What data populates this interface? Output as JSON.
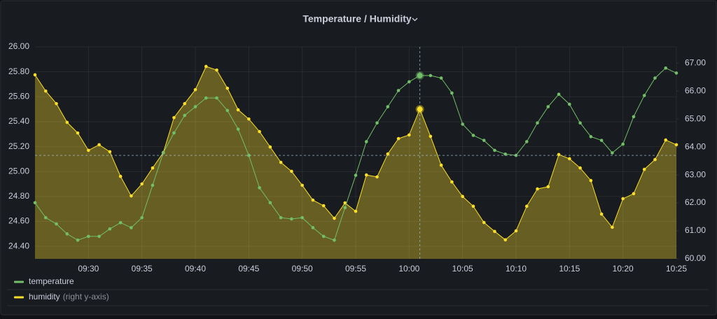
{
  "chart_data": {
    "type": "line",
    "title": "Temperature / Humidity",
    "x": [
      "09:25",
      "09:26",
      "09:27",
      "09:28",
      "09:29",
      "09:30",
      "09:31",
      "09:32",
      "09:33",
      "09:34",
      "09:35",
      "09:36",
      "09:37",
      "09:38",
      "09:39",
      "09:40",
      "09:41",
      "09:42",
      "09:43",
      "09:44",
      "09:45",
      "09:46",
      "09:47",
      "09:48",
      "09:49",
      "09:50",
      "09:51",
      "09:52",
      "09:53",
      "09:54",
      "09:55",
      "09:56",
      "09:57",
      "09:58",
      "09:59",
      "10:00",
      "10:01",
      "10:02",
      "10:03",
      "10:04",
      "10:05",
      "10:06",
      "10:07",
      "10:08",
      "10:09",
      "10:10",
      "10:11",
      "10:12",
      "10:13",
      "10:14",
      "10:15",
      "10:16",
      "10:17",
      "10:18",
      "10:19",
      "10:20",
      "10:21",
      "10:22",
      "10:23",
      "10:24",
      "10:25"
    ],
    "xlim": [
      "09:25",
      "10:25"
    ],
    "xticks": [
      "09:30",
      "09:35",
      "09:40",
      "09:45",
      "09:50",
      "09:55",
      "10:00",
      "10:05",
      "10:10",
      "10:15",
      "10:20",
      "10:25"
    ],
    "ylim": [
      24.3,
      26.0
    ],
    "yticks": [
      {
        "value": 24.4,
        "label": "24.40"
      },
      {
        "value": 24.6,
        "label": "24.60"
      },
      {
        "value": 24.8,
        "label": "24.80"
      },
      {
        "value": 25.0,
        "label": "25.00"
      },
      {
        "value": 25.2,
        "label": "25.20"
      },
      {
        "value": 25.4,
        "label": "25.40"
      },
      {
        "value": 25.6,
        "label": "25.60"
      },
      {
        "value": 25.8,
        "label": "25.80"
      },
      {
        "value": 26.0,
        "label": "26.00"
      }
    ],
    "y2lim": [
      60,
      67.58
    ],
    "y2ticks": [
      {
        "value": 60,
        "label": "60.00"
      },
      {
        "value": 61,
        "label": "61.00"
      },
      {
        "value": 62,
        "label": "62.00"
      },
      {
        "value": 63,
        "label": "63.00"
      },
      {
        "value": 64,
        "label": "64.00"
      },
      {
        "value": 65,
        "label": "65.00"
      },
      {
        "value": 66,
        "label": "66.00"
      },
      {
        "value": 67,
        "label": "67.00"
      }
    ],
    "grid": true,
    "series": [
      {
        "name": "temperature",
        "color": "#73bf69",
        "axis": "y",
        "values": [
          24.75,
          24.63,
          24.58,
          24.5,
          24.45,
          24.48,
          24.48,
          24.54,
          24.59,
          24.55,
          24.63,
          24.89,
          25.15,
          25.31,
          25.45,
          25.52,
          25.59,
          25.59,
          25.49,
          25.34,
          25.13,
          24.87,
          24.75,
          24.63,
          24.62,
          24.63,
          24.55,
          24.48,
          24.45,
          24.71,
          24.97,
          25.24,
          25.39,
          25.52,
          25.65,
          25.72,
          25.77,
          25.77,
          25.75,
          25.63,
          25.38,
          25.29,
          25.25,
          25.17,
          25.14,
          25.13,
          25.24,
          25.39,
          25.52,
          25.62,
          25.54,
          25.39,
          25.28,
          25.25,
          25.15,
          25.22,
          25.44,
          25.61,
          25.75,
          25.83,
          25.79
        ]
      },
      {
        "name": "humidity",
        "note": "(right y-axis)",
        "color": "#fade2a",
        "axis": "y2",
        "fill": true,
        "values": [
          66.58,
          66.0,
          65.55,
          64.88,
          64.5,
          63.88,
          64.08,
          63.83,
          62.95,
          62.25,
          62.68,
          63.25,
          63.8,
          65.05,
          65.55,
          66.05,
          66.88,
          66.75,
          66.1,
          65.33,
          65.0,
          64.55,
          64.0,
          63.45,
          63.13,
          62.63,
          62.1,
          61.9,
          61.45,
          62.0,
          61.7,
          63.0,
          62.93,
          63.75,
          64.3,
          64.43,
          65.35,
          64.38,
          63.35,
          62.75,
          62.23,
          61.88,
          61.3,
          60.98,
          60.68,
          61.0,
          61.88,
          62.5,
          62.58,
          63.73,
          63.58,
          63.25,
          62.8,
          61.6,
          61.13,
          62.15,
          62.33,
          63.2,
          63.55,
          64.25,
          64.08
        ]
      }
    ],
    "crosshair": {
      "x": "10:01",
      "y": 25.13
    }
  }
}
